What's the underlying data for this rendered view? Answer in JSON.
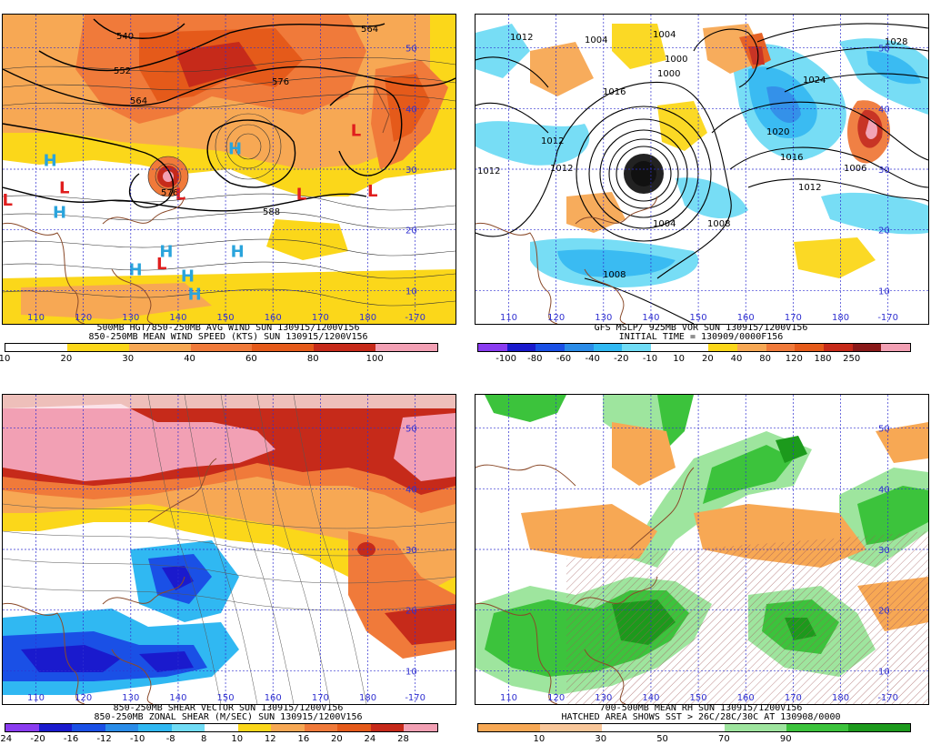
{
  "panels": [
    {
      "id": "p1",
      "title_lines": [
        "500MB HGT/850-250MB AVG WIND SUN 130915/1200V156",
        "850-250MB MEAN WIND SPEED (KTS) SUN 130915/1200V156"
      ],
      "lon_labels": [
        "110",
        "120",
        "130",
        "140",
        "150",
        "160",
        "170",
        "180",
        "-170"
      ],
      "lat_labels": [
        "50",
        "40",
        "30",
        "20",
        "10"
      ],
      "colorbar": {
        "colors": [
          "#ffffff",
          "#fbd71a",
          "#f7a854",
          "#f07a3a",
          "#e55a1a",
          "#c62a1a",
          "#f2a0b4"
        ],
        "ticks": [
          "10",
          "20",
          "30",
          "40",
          "60",
          "80",
          "100"
        ]
      },
      "contour_labels": [
        "540",
        "552",
        "564",
        "576",
        "564",
        "588",
        "576"
      ],
      "pressure_marks": [
        {
          "letter": "H",
          "lon": 113,
          "lat": 30.5,
          "color": "#2aa4dc"
        },
        {
          "letter": "H",
          "lon": 152,
          "lat": 32.5,
          "color": "#2aa4dc"
        },
        {
          "letter": "H",
          "lon": 115,
          "lat": 22,
          "color": "#2aa4dc"
        },
        {
          "letter": "H",
          "lon": 137.5,
          "lat": 15.5,
          "color": "#2aa4dc"
        },
        {
          "letter": "H",
          "lon": 152.5,
          "lat": 15.5,
          "color": "#2aa4dc"
        },
        {
          "letter": "H",
          "lon": 131,
          "lat": 12.5,
          "color": "#2aa4dc"
        },
        {
          "letter": "H",
          "lon": 142,
          "lat": 11.5,
          "color": "#2aa4dc"
        },
        {
          "letter": "H",
          "lon": 143.5,
          "lat": 8.5,
          "color": "#2aa4dc"
        },
        {
          "letter": "L",
          "lon": 177.5,
          "lat": 35.5,
          "color": "#e01e1e"
        },
        {
          "letter": "L",
          "lon": 116,
          "lat": 26,
          "color": "#e01e1e"
        },
        {
          "letter": "L",
          "lon": 104,
          "lat": 24,
          "color": "#e01e1e"
        },
        {
          "letter": "L",
          "lon": 140.5,
          "lat": 25,
          "color": "#e01e1e"
        },
        {
          "letter": "L",
          "lon": 166,
          "lat": 25,
          "color": "#e01e1e"
        },
        {
          "letter": "L",
          "lon": 181,
          "lat": 25.5,
          "color": "#e01e1e"
        },
        {
          "letter": "L",
          "lon": 136.5,
          "lat": 13.5,
          "color": "#e01e1e"
        }
      ]
    },
    {
      "id": "p2",
      "title_lines": [
        "GFS MSLP/ 925MB VOR SUN 130915/1200V156",
        "INITIAL TIME = 130909/0000F156"
      ],
      "lon_labels": [
        "110",
        "120",
        "130",
        "140",
        "150",
        "160",
        "170",
        "180",
        "-170"
      ],
      "lat_labels": [
        "50",
        "40",
        "30",
        "20",
        "10"
      ],
      "colorbar": {
        "colors": [
          "#8a3cf0",
          "#1a1acd",
          "#1a50e6",
          "#2a8ce8",
          "#30b8f2",
          "#70dcf5",
          "#ffffff",
          "#ffffff",
          "#fbd71a",
          "#f7a854",
          "#f07a3a",
          "#e55a1a",
          "#c62a1a",
          "#8a1a1a",
          "#f2a0b4"
        ],
        "ticks": [
          "-100",
          "-80",
          "-60",
          "-40",
          "-20",
          "-10",
          "10",
          "20",
          "40",
          "80",
          "120",
          "180",
          "250"
        ]
      },
      "contour_labels": [
        "1012",
        "1004",
        "1000",
        "1016",
        "1012",
        "1004",
        "1008",
        "1024",
        "1028",
        "1020",
        "1016",
        "1012",
        "1006",
        "1004",
        "1000",
        "1012",
        "1008",
        "1012"
      ]
    },
    {
      "id": "p3",
      "title_lines": [
        "850-250MB SHEAR VECTOR SUN 130915/1200V156",
        "850-250MB ZONAL SHEAR (M/SEC) SUN 130915/1200V156"
      ],
      "lon_labels": [
        "110",
        "120",
        "130",
        "140",
        "150",
        "160",
        "170",
        "180",
        "-170"
      ],
      "lat_labels": [
        "50",
        "40",
        "30",
        "20",
        "10"
      ],
      "colorbar": {
        "colors": [
          "#8a3cf0",
          "#1a1acd",
          "#1a50e6",
          "#2a8ce8",
          "#30b8f2",
          "#70dcf5",
          "#ffffff",
          "#fbd71a",
          "#f7a854",
          "#f07a3a",
          "#e55a1a",
          "#c62a1a",
          "#f2a0b4"
        ],
        "ticks": [
          "-24",
          "-20",
          "-16",
          "-12",
          "-10",
          "-8",
          "8",
          "10",
          "12",
          "16",
          "20",
          "24",
          "28"
        ]
      }
    },
    {
      "id": "p4",
      "title_lines": [
        "700-500MB MEAN RH SUN 130915/1200V156",
        "HATCHED AREA SHOWS SST > 26C/28C/30C AT 130908/0000"
      ],
      "lon_labels": [
        "110",
        "120",
        "130",
        "140",
        "150",
        "160",
        "170",
        "180",
        "-170"
      ],
      "lat_labels": [
        "50",
        "40",
        "30",
        "20",
        "10"
      ],
      "colorbar": {
        "colors": [
          "#f7a854",
          "#f9c79a",
          "#ffffff",
          "#ffffff",
          "#9ee59e",
          "#3cc33c",
          "#1c9a1c"
        ],
        "ticks": [
          "10",
          "30",
          "50",
          "70",
          "90"
        ]
      }
    }
  ]
}
